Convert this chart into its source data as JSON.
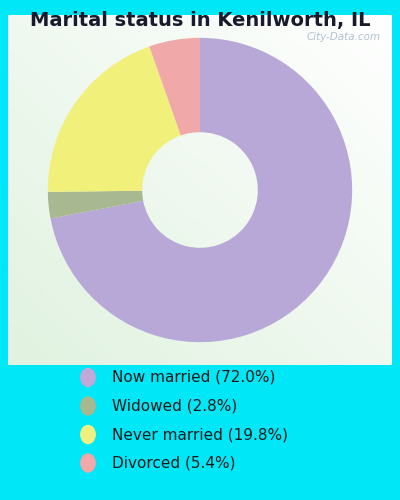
{
  "title": "Marital status in Kenilworth, IL",
  "slices": [
    72.0,
    2.8,
    19.8,
    5.4
  ],
  "labels": [
    "Now married (72.0%)",
    "Widowed (2.8%)",
    "Never married (19.8%)",
    "Divorced (5.4%)"
  ],
  "colors": [
    "#b8a8d8",
    "#a8b890",
    "#f0f07a",
    "#f0a8a8"
  ],
  "legend_colors": [
    "#c0a8d8",
    "#a8b890",
    "#f0f080",
    "#f0a8a8"
  ],
  "bg_outer": "#00e8f8",
  "donut_width": 0.62,
  "start_angle": 90,
  "watermark": "City-Data.com",
  "title_fontsize": 14,
  "legend_fontsize": 11
}
